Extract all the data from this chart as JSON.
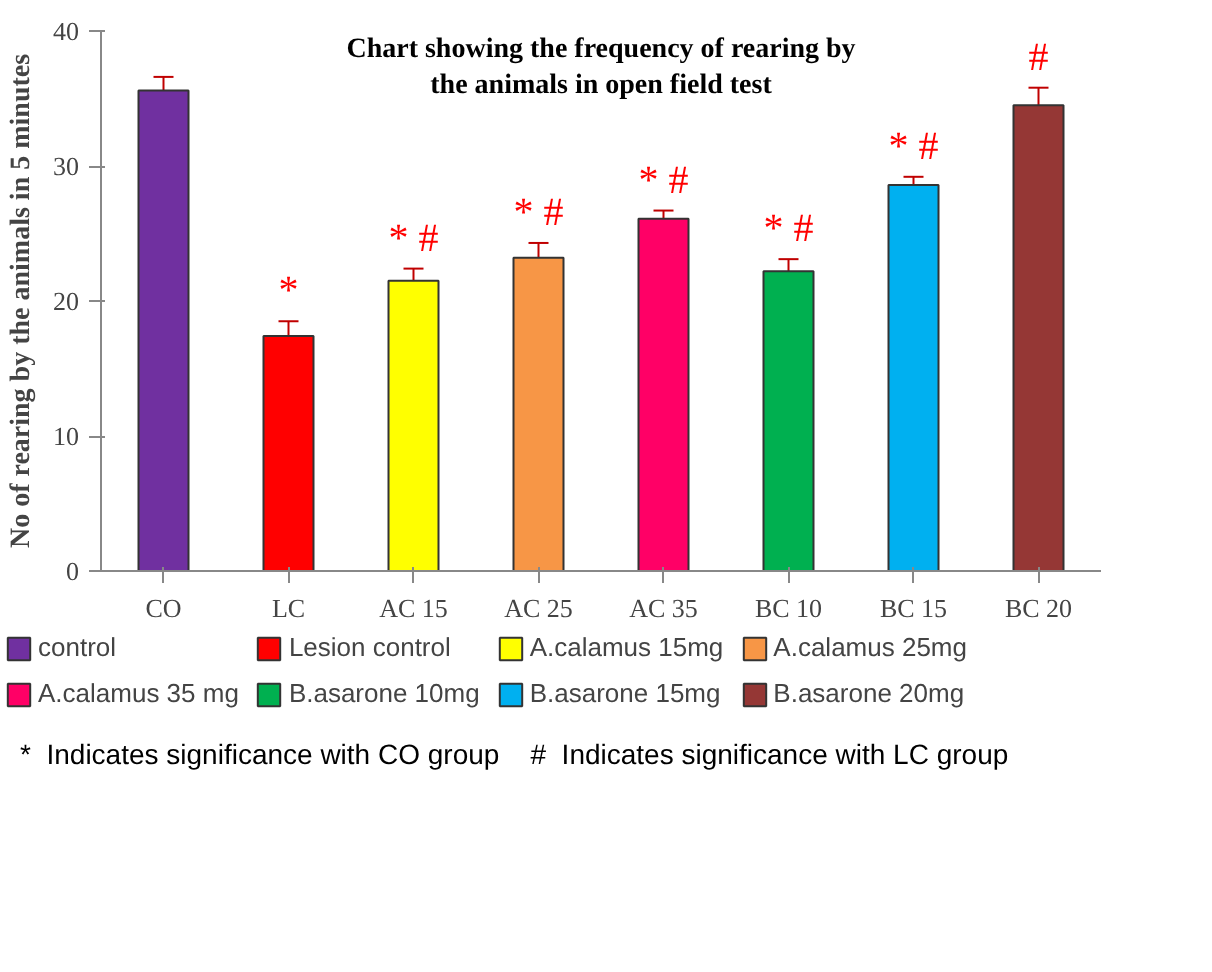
{
  "chart_data": {
    "type": "bar",
    "title": "Chart showing the frequency of rearing by the animals in open field test",
    "ylabel": "No of rearing by the animals in 5 minutes",
    "categories": [
      "CO",
      "LC",
      "AC 15",
      "AC 25",
      "AC 35",
      "BC 10",
      "BC 15",
      "BC 20"
    ],
    "series": [
      {
        "name": "control",
        "color": "#7030a0",
        "values": [
          35.6,
          null,
          null,
          null,
          null,
          null,
          null,
          null
        ],
        "errors": [
          1.0,
          null,
          null,
          null,
          null,
          null,
          null,
          null
        ]
      },
      {
        "name": "Lesion control",
        "color": "#ff0000",
        "values": [
          null,
          17.4,
          null,
          null,
          null,
          null,
          null,
          null
        ],
        "errors": [
          null,
          1.1,
          null,
          null,
          null,
          null,
          null,
          null
        ],
        "value_labels": [
          null,
          "*",
          null,
          null,
          null,
          null,
          null,
          null
        ]
      },
      {
        "name": "A.calamus 15mg",
        "color": "#ffff00",
        "values": [
          null,
          null,
          21.5,
          null,
          null,
          null,
          null,
          null
        ],
        "errors": [
          null,
          null,
          0.9,
          null,
          null,
          null,
          null,
          null
        ],
        "value_labels": [
          null,
          null,
          "* #",
          null,
          null,
          null,
          null,
          null
        ]
      },
      {
        "name": "A.calamus 25mg",
        "color": "#f79646",
        "values": [
          null,
          null,
          null,
          23.2,
          null,
          null,
          null,
          null
        ],
        "errors": [
          null,
          null,
          null,
          1.1,
          null,
          null,
          null,
          null
        ],
        "value_labels": [
          null,
          null,
          null,
          "* #",
          null,
          null,
          null,
          null
        ]
      },
      {
        "name": "A.calamus 35 mg",
        "color": "#ff0066",
        "values": [
          null,
          null,
          null,
          null,
          26.1,
          null,
          null,
          null
        ],
        "errors": [
          null,
          null,
          null,
          null,
          0.6,
          null,
          null,
          null
        ],
        "value_labels": [
          null,
          null,
          null,
          null,
          "* #",
          null,
          null,
          null
        ]
      },
      {
        "name": "B.asarone 10mg",
        "color": "#00b050",
        "values": [
          null,
          null,
          null,
          null,
          null,
          22.2,
          null,
          null
        ],
        "errors": [
          null,
          null,
          null,
          null,
          null,
          0.9,
          null,
          null
        ],
        "value_labels": [
          null,
          null,
          null,
          null,
          null,
          "* #",
          null,
          null
        ]
      },
      {
        "name": "B.asarone 15mg",
        "color": "#00b0f0",
        "values": [
          null,
          null,
          null,
          null,
          null,
          null,
          28.6,
          null
        ],
        "errors": [
          null,
          null,
          null,
          null,
          null,
          null,
          0.6,
          null
        ],
        "value_labels": [
          null,
          null,
          null,
          null,
          null,
          null,
          "* #",
          null
        ]
      },
      {
        "name": "B.asarone 20mg",
        "color": "#953735",
        "values": [
          null,
          null,
          null,
          null,
          null,
          null,
          null,
          34.5
        ],
        "errors": [
          null,
          null,
          null,
          null,
          null,
          null,
          null,
          1.3
        ],
        "value_labels": [
          null,
          null,
          null,
          null,
          null,
          null,
          null,
          "#"
        ]
      }
    ],
    "ylim": [
      0,
      40
    ],
    "yticks": [
      0,
      10,
      20,
      30,
      40
    ],
    "grid": false,
    "legend": "bottom",
    "annotations": [
      "*  Indicates significance with CO group    #  Indicates significance with LC group"
    ]
  }
}
